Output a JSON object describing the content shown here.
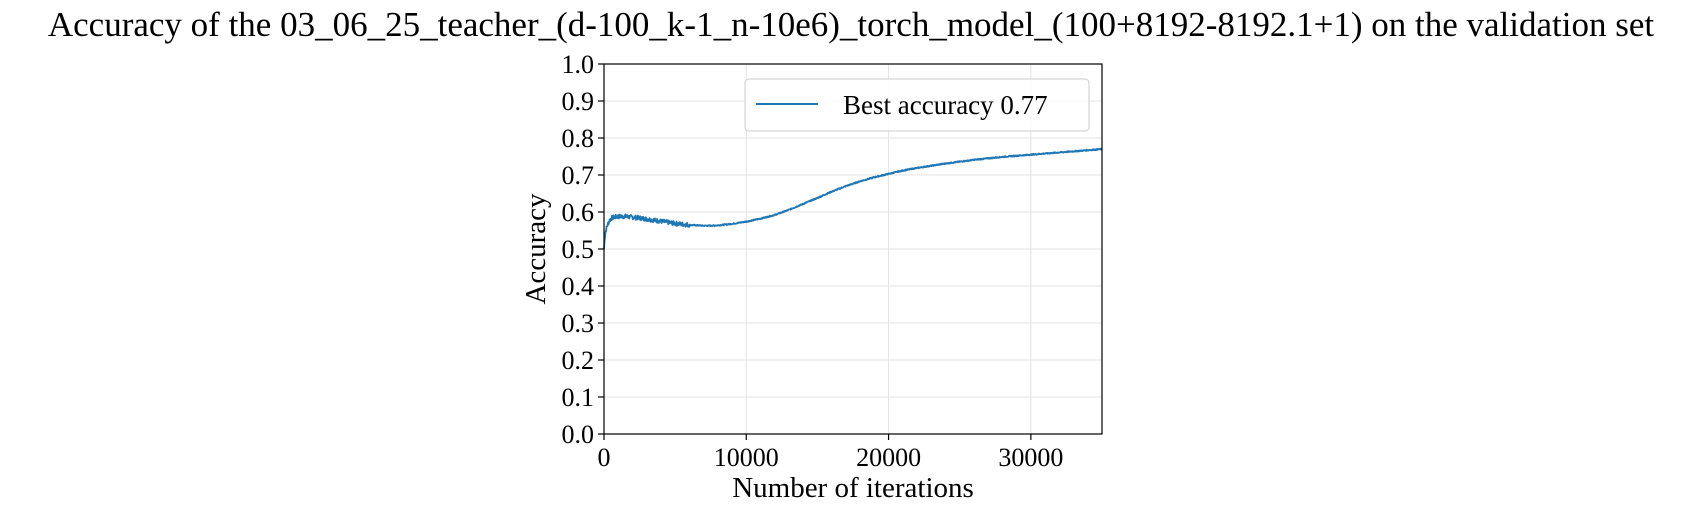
{
  "chart_data": {
    "type": "line",
    "title": "Accuracy of the 03_06_25_teacher_(d-100_k-1_n-10e6)_torch_model_(100+8192-8192.1+1) on the validation set",
    "xlabel": "Number of iterations",
    "ylabel": "Accuracy",
    "xlim": [
      0,
      35000
    ],
    "ylim": [
      0.0,
      1.0
    ],
    "x_ticks": [
      0,
      10000,
      20000,
      30000
    ],
    "x_tick_labels": [
      "0",
      "10000",
      "20000",
      "30000"
    ],
    "y_ticks": [
      0.0,
      0.1,
      0.2,
      0.3,
      0.4,
      0.5,
      0.6,
      0.7,
      0.8,
      0.9,
      1.0
    ],
    "y_tick_labels": [
      "0.0",
      "0.1",
      "0.2",
      "0.3",
      "0.4",
      "0.5",
      "0.6",
      "0.7",
      "0.8",
      "0.9",
      "1.0"
    ],
    "grid": true,
    "legend_position": "top-right",
    "series": [
      {
        "name": "Best accuracy 0.77",
        "color": "#1f77b4",
        "x": [
          0,
          50,
          100,
          200,
          300,
          400,
          500,
          700,
          1000,
          1500,
          2000,
          2500,
          3000,
          3500,
          4000,
          4500,
          5000,
          5500,
          6000,
          6500,
          7000,
          7500,
          8000,
          8500,
          9000,
          9500,
          10000,
          11000,
          12000,
          13000,
          14000,
          15000,
          16000,
          17000,
          18000,
          19000,
          20000,
          21000,
          22000,
          23000,
          24000,
          25000,
          26000,
          27000,
          28000,
          29000,
          30000,
          31000,
          32000,
          33000,
          34000,
          35000
        ],
        "y": [
          0.5,
          0.53,
          0.545,
          0.56,
          0.57,
          0.578,
          0.583,
          0.586,
          0.588,
          0.588,
          0.586,
          0.584,
          0.581,
          0.578,
          0.575,
          0.572,
          0.569,
          0.567,
          0.565,
          0.564,
          0.563,
          0.563,
          0.564,
          0.566,
          0.568,
          0.571,
          0.574,
          0.582,
          0.592,
          0.606,
          0.622,
          0.638,
          0.655,
          0.67,
          0.683,
          0.694,
          0.703,
          0.712,
          0.719,
          0.725,
          0.731,
          0.736,
          0.741,
          0.745,
          0.749,
          0.752,
          0.755,
          0.758,
          0.761,
          0.764,
          0.767,
          0.77
        ]
      }
    ]
  }
}
